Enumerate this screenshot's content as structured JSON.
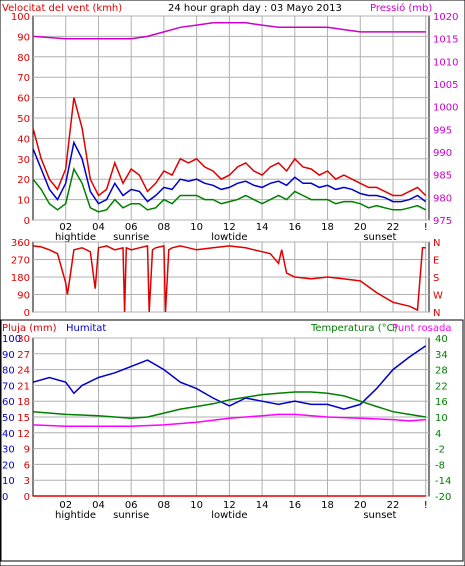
{
  "header": {
    "wind_label": "Velocitat del vent (kmh)",
    "title": "24 hour graph day : 03 Mayo 2013",
    "pressure_label": "Pressió (mb)"
  },
  "panel3_header": {
    "rain_label": "Pluja (mm)",
    "humidity_label": "Humitat",
    "temp_label": "Temperatura (°C)",
    "dew_label": "Punt rosada"
  },
  "x_axis": {
    "ticks": [
      "02",
      "04",
      "06",
      "08",
      "10",
      "12",
      "14",
      "16",
      "18",
      "20",
      "22",
      "!"
    ],
    "events": [
      {
        "label": "hightide",
        "hour": 2.6
      },
      {
        "label": "sunrise",
        "hour": 6.0
      },
      {
        "label": "lowtide",
        "hour": 12.0
      },
      {
        "label": "sunset",
        "hour": 21.2
      }
    ]
  },
  "colors": {
    "wind_gust": "#e00000",
    "wind_avg": "#0000cc",
    "wind_low": "#008000",
    "pressure": "#cc00cc",
    "direction": "#e00000",
    "humidity": "#0000cc",
    "temperature": "#008000",
    "dew": "#ff00ff",
    "rain": "#e00000",
    "grid": "#b0b0b0"
  },
  "chart_data": [
    {
      "type": "line",
      "name": "wind-pressure",
      "xlim": [
        0,
        24.2
      ],
      "ylim_left": [
        0,
        100
      ],
      "ylim_right": [
        975,
        1020
      ],
      "y_ticks_left": [
        0,
        10,
        20,
        30,
        40,
        50,
        60,
        70,
        80,
        90,
        100
      ],
      "y_ticks_right": [
        975,
        980,
        985,
        990,
        995,
        1000,
        1005,
        1010,
        1015,
        1020
      ],
      "grid": true,
      "series": [
        {
          "key": "gust",
          "axis": "left",
          "x": [
            0,
            0.5,
            1,
            1.5,
            2,
            2.5,
            3,
            3.5,
            4,
            4.5,
            5,
            5.5,
            6,
            6.5,
            7,
            7.5,
            8,
            8.5,
            9,
            9.5,
            10,
            10.5,
            11,
            11.5,
            12,
            12.5,
            13,
            13.5,
            14,
            14.5,
            15,
            15.5,
            16,
            16.5,
            17,
            17.5,
            18,
            18.5,
            19,
            19.5,
            20,
            20.5,
            21,
            21.5,
            22,
            22.5,
            23,
            23.5,
            24
          ],
          "y": [
            45,
            30,
            20,
            15,
            25,
            60,
            45,
            20,
            12,
            15,
            28,
            18,
            25,
            22,
            14,
            18,
            24,
            22,
            30,
            28,
            30,
            26,
            24,
            20,
            22,
            26,
            28,
            24,
            22,
            26,
            28,
            24,
            30,
            26,
            25,
            22,
            24,
            20,
            22,
            20,
            18,
            16,
            16,
            14,
            12,
            12,
            14,
            16,
            12
          ]
        },
        {
          "key": "avg",
          "axis": "left",
          "x": [
            0,
            0.5,
            1,
            1.5,
            2,
            2.5,
            3,
            3.5,
            4,
            4.5,
            5,
            5.5,
            6,
            6.5,
            7,
            7.5,
            8,
            8.5,
            9,
            9.5,
            10,
            10.5,
            11,
            11.5,
            12,
            12.5,
            13,
            13.5,
            14,
            14.5,
            15,
            15.5,
            16,
            16.5,
            17,
            17.5,
            18,
            18.5,
            19,
            19.5,
            20,
            20.5,
            21,
            21.5,
            22,
            22.5,
            23,
            23.5,
            24
          ],
          "y": [
            35,
            25,
            15,
            10,
            18,
            38,
            30,
            14,
            8,
            10,
            18,
            12,
            15,
            14,
            9,
            12,
            16,
            15,
            20,
            19,
            20,
            18,
            17,
            15,
            16,
            18,
            19,
            17,
            16,
            18,
            19,
            17,
            21,
            18,
            18,
            16,
            17,
            15,
            16,
            15,
            13,
            12,
            12,
            11,
            9,
            9,
            10,
            12,
            9
          ]
        },
        {
          "key": "low",
          "axis": "left",
          "x": [
            0,
            0.5,
            1,
            1.5,
            2,
            2.5,
            3,
            3.5,
            4,
            4.5,
            5,
            5.5,
            6,
            6.5,
            7,
            7.5,
            8,
            8.5,
            9,
            9.5,
            10,
            10.5,
            11,
            11.5,
            12,
            12.5,
            13,
            13.5,
            14,
            14.5,
            15,
            15.5,
            16,
            16.5,
            17,
            17.5,
            18,
            18.5,
            19,
            19.5,
            20,
            20.5,
            21,
            21.5,
            22,
            22.5,
            23,
            23.5,
            24
          ],
          "y": [
            20,
            15,
            8,
            5,
            8,
            25,
            18,
            6,
            4,
            5,
            10,
            6,
            8,
            8,
            5,
            6,
            10,
            8,
            12,
            12,
            12,
            10,
            10,
            8,
            9,
            10,
            12,
            10,
            8,
            10,
            12,
            10,
            14,
            12,
            10,
            10,
            10,
            8,
            9,
            9,
            8,
            6,
            7,
            6,
            5,
            5,
            6,
            7,
            5
          ]
        },
        {
          "key": "pressure",
          "axis": "right",
          "x": [
            0,
            2,
            4,
            6,
            7,
            8,
            9,
            10,
            11,
            12,
            13,
            14,
            15,
            16,
            17,
            18,
            19,
            20,
            21,
            22,
            23,
            24
          ],
          "y": [
            1015.5,
            1015,
            1015,
            1015,
            1015.5,
            1016.5,
            1017.5,
            1018,
            1018.5,
            1018.5,
            1018.5,
            1018,
            1017.5,
            1017.5,
            1017.5,
            1017.5,
            1017,
            1016.5,
            1016.5,
            1016.5,
            1016.5,
            1016.5
          ]
        }
      ]
    },
    {
      "type": "line",
      "name": "wind-direction",
      "xlim": [
        0,
        24.2
      ],
      "ylim": [
        0,
        360
      ],
      "y_ticks_left": [
        0,
        90,
        180,
        270,
        360
      ],
      "y_ticks_right": [
        "N",
        "W",
        "S",
        "E",
        "N"
      ],
      "grid": true,
      "series": [
        {
          "key": "direction",
          "x": [
            0,
            0.5,
            1,
            1.5,
            2,
            2.1,
            2.3,
            2.5,
            3,
            3.5,
            3.8,
            4,
            4.5,
            5,
            5.5,
            5.6,
            5.7,
            6,
            6.5,
            7,
            7.1,
            7.3,
            7.5,
            8,
            8.1,
            8.3,
            8.5,
            9,
            9.5,
            10,
            11,
            12,
            12.5,
            13,
            13.5,
            14,
            14.5,
            15,
            15.2,
            15.5,
            16,
            17,
            18,
            19,
            20,
            21,
            22,
            23,
            23.5,
            23.8,
            24
          ],
          "y": [
            340,
            335,
            320,
            300,
            150,
            90,
            200,
            320,
            330,
            310,
            120,
            330,
            340,
            320,
            330,
            0,
            330,
            320,
            330,
            340,
            0,
            320,
            330,
            340,
            0,
            320,
            330,
            340,
            330,
            320,
            330,
            340,
            335,
            330,
            320,
            310,
            300,
            250,
            320,
            200,
            180,
            170,
            180,
            170,
            160,
            100,
            50,
            30,
            10,
            330,
            330
          ]
        }
      ]
    },
    {
      "type": "line",
      "name": "humidity-temperature",
      "xlim": [
        0,
        24.2
      ],
      "ylim_left": [
        0,
        100
      ],
      "ylim_right": [
        -20,
        40
      ],
      "y_ticks_left": [
        0,
        10,
        20,
        30,
        40,
        50,
        60,
        70,
        80,
        90,
        100
      ],
      "y_ticks_rain": [
        0,
        3,
        6,
        9,
        12,
        15,
        18,
        21,
        24,
        27,
        30
      ],
      "y_ticks_right": [
        -20,
        -14,
        -8,
        -2,
        4,
        10,
        16,
        22,
        28,
        34,
        40
      ],
      "grid": true,
      "series": [
        {
          "key": "humidity",
          "axis": "left",
          "x": [
            0,
            1,
            2,
            2.5,
            3,
            4,
            5,
            6,
            7,
            8,
            9,
            10,
            11,
            12,
            13,
            14,
            15,
            16,
            17,
            18,
            19,
            20,
            21,
            22,
            23,
            24
          ],
          "y": [
            72,
            75,
            72,
            65,
            70,
            75,
            78,
            82,
            86,
            80,
            72,
            68,
            62,
            57,
            62,
            60,
            58,
            60,
            58,
            58,
            55,
            58,
            68,
            80,
            88,
            95
          ]
        },
        {
          "key": "temperature",
          "axis": "right",
          "x": [
            0,
            2,
            4,
            6,
            7,
            8,
            9,
            10,
            11,
            12,
            13,
            14,
            15,
            16,
            17,
            18,
            19,
            20,
            21,
            22,
            23,
            24
          ],
          "y": [
            12,
            11,
            10.5,
            9.5,
            10,
            11.5,
            13,
            14,
            15,
            16.5,
            17.5,
            18.5,
            19,
            19.5,
            19.5,
            19,
            18,
            16,
            14,
            12,
            11,
            10
          ]
        },
        {
          "key": "dew",
          "axis": "right",
          "x": [
            0,
            2,
            4,
            6,
            8,
            10,
            12,
            14,
            15,
            16,
            18,
            20,
            22,
            23,
            24
          ],
          "y": [
            7,
            6.5,
            6.5,
            6.5,
            7,
            8,
            9.5,
            10.5,
            11,
            11,
            10,
            9.5,
            9,
            8.5,
            9
          ]
        },
        {
          "key": "rain",
          "axis": "rain",
          "x": [
            0,
            24
          ],
          "y": [
            0,
            0
          ]
        }
      ]
    }
  ]
}
